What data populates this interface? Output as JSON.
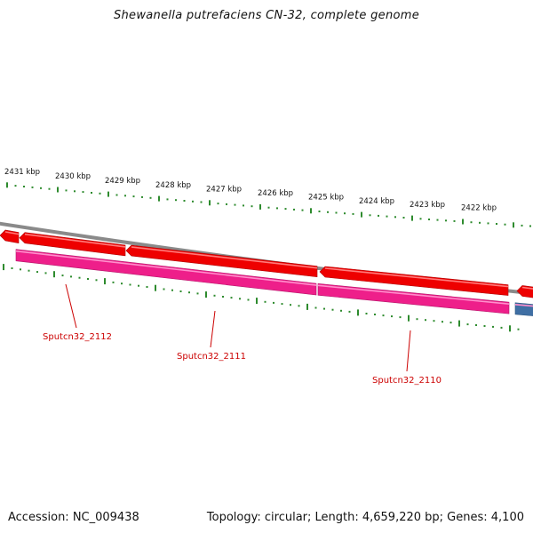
{
  "title": "Shewanella putrefaciens CN-32, complete genome",
  "footer": {
    "accession": "Accession: NC_009438",
    "summary": "Topology: circular; Length: 4,659,220 bp; Genes: 4,100"
  },
  "colors": {
    "backbone": "#8a8a8a",
    "forward_feature": "#ee0000",
    "reverse_feature": "#ee1f8a",
    "other_feature": "#3f6fa4",
    "tick": "#2e8b2e",
    "gene_label": "#cc0000"
  },
  "kbp_labels": [
    "2431 kbp",
    "2430 kbp",
    "2429 kbp",
    "2428 kbp",
    "2427 kbp",
    "2426 kbp",
    "2425 kbp",
    "2424 kbp",
    "2423 kbp",
    "2422 kbp"
  ],
  "genes": [
    {
      "name": "Sputcn32_2112"
    },
    {
      "name": "Sputcn32_2111"
    },
    {
      "name": "Sputcn32_2110"
    }
  ]
}
